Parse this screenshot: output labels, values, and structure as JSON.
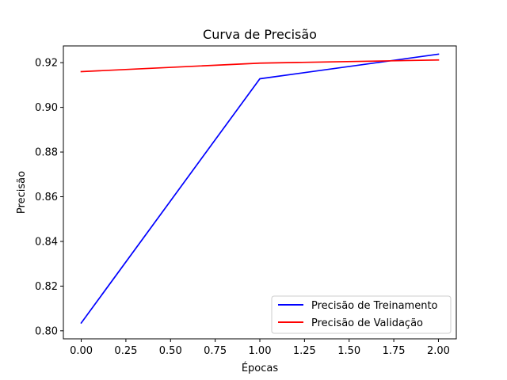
{
  "chart_data": {
    "type": "line",
    "title": "Curva de Precisão",
    "xlabel": "Épocas",
    "ylabel": "Precisão",
    "x": [
      0,
      1,
      2
    ],
    "xlim": [
      -0.1,
      2.1
    ],
    "ylim": [
      0.7964,
      0.9275
    ],
    "xticks": [
      0.0,
      0.25,
      0.5,
      0.75,
      1.0,
      1.25,
      1.5,
      1.75,
      2.0
    ],
    "xtick_labels": [
      "0.00",
      "0.25",
      "0.50",
      "0.75",
      "1.00",
      "1.25",
      "1.50",
      "1.75",
      "2.00"
    ],
    "yticks": [
      0.8,
      0.82,
      0.84,
      0.86,
      0.88,
      0.9,
      0.92
    ],
    "ytick_labels": [
      "0.80",
      "0.82",
      "0.84",
      "0.86",
      "0.88",
      "0.90",
      "0.92"
    ],
    "grid": false,
    "legend_position": "lower-right",
    "series": [
      {
        "name": "Precisão de Treinamento",
        "values": [
          0.8035,
          0.9128,
          0.9238
        ],
        "color": "#0000ff"
      },
      {
        "name": "Precisão de Validação",
        "values": [
          0.916,
          0.9198,
          0.9212
        ],
        "color": "#ff0000"
      }
    ]
  }
}
